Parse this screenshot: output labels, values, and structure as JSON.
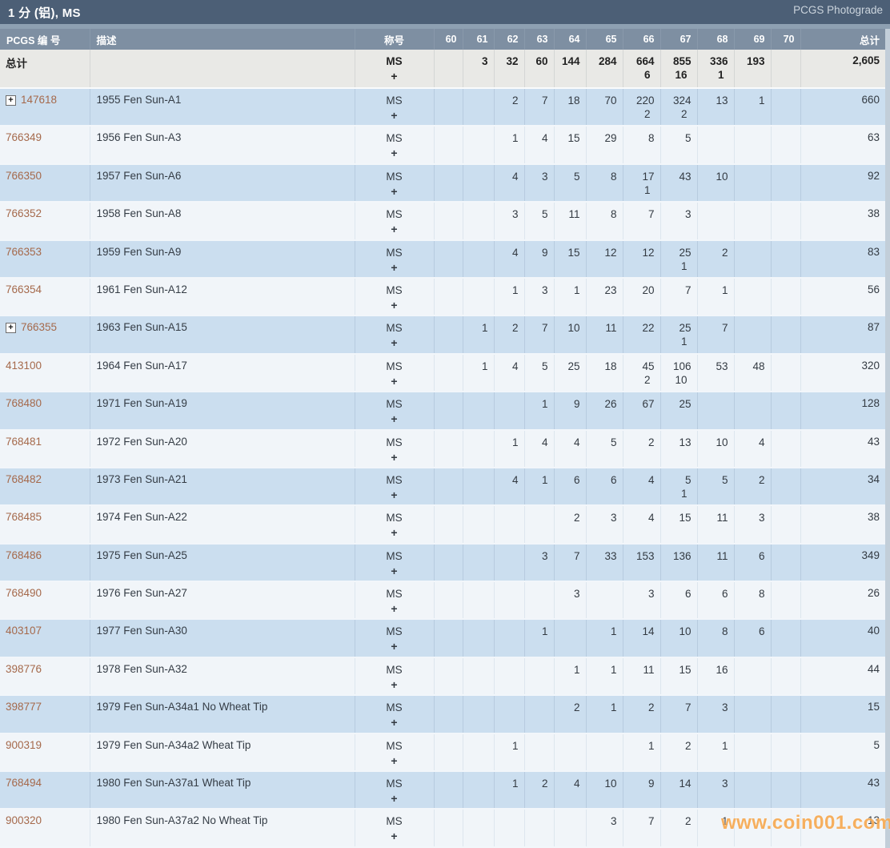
{
  "page": {
    "title": "1 分 (铝), MS",
    "photograde_label": "PCGS Photograde",
    "watermark": "www.coin001.com"
  },
  "colors": {
    "title_bar": "#4c5f76",
    "header_bar": "#7e8fa2",
    "totals_row_bg": "#e9e9e6",
    "row_blue": "#cbdeef",
    "row_light": "#f1f5f9",
    "link": "#a5694b",
    "watermark_orange": "#f6a448"
  },
  "table": {
    "headers": {
      "number": "PCGS 编 号",
      "description": "描述",
      "designation": "称号",
      "grades": [
        "60",
        "61",
        "62",
        "63",
        "64",
        "65",
        "66",
        "67",
        "68",
        "69",
        "70"
      ],
      "total": "总计"
    },
    "designation_line1": "MS",
    "designation_line2": "+",
    "totals_row": {
      "label": "总计",
      "ms": [
        "",
        "3",
        "32",
        "60",
        "144",
        "284",
        "664",
        "855",
        "336",
        "193",
        ""
      ],
      "plus": [
        "",
        "",
        "",
        "",
        "",
        "",
        "6",
        "16",
        "1",
        "",
        ""
      ],
      "total": "2,605"
    },
    "rows": [
      {
        "number": "147618",
        "expandable": true,
        "description": "1955 Fen Sun-A1",
        "ms": [
          "",
          "",
          "2",
          "7",
          "18",
          "70",
          "220",
          "324",
          "13",
          "1",
          ""
        ],
        "plus": [
          "",
          "",
          "",
          "",
          "",
          "",
          "2",
          "2",
          "",
          "",
          ""
        ],
        "total": "660"
      },
      {
        "number": "766349",
        "expandable": false,
        "description": "1956 Fen Sun-A3",
        "ms": [
          "",
          "",
          "1",
          "4",
          "15",
          "29",
          "8",
          "5",
          "",
          "",
          ""
        ],
        "plus": [],
        "total": "63"
      },
      {
        "number": "766350",
        "expandable": false,
        "description": "1957 Fen Sun-A6",
        "ms": [
          "",
          "",
          "4",
          "3",
          "5",
          "8",
          "17",
          "43",
          "10",
          "",
          ""
        ],
        "plus": [
          "",
          "",
          "",
          "",
          "",
          "",
          "1",
          "",
          "",
          "",
          ""
        ],
        "total": "92"
      },
      {
        "number": "766352",
        "expandable": false,
        "description": "1958 Fen Sun-A8",
        "ms": [
          "",
          "",
          "3",
          "5",
          "11",
          "8",
          "7",
          "3",
          "",
          "",
          ""
        ],
        "plus": [],
        "total": "38"
      },
      {
        "number": "766353",
        "expandable": false,
        "description": "1959 Fen Sun-A9",
        "ms": [
          "",
          "",
          "4",
          "9",
          "15",
          "12",
          "12",
          "25",
          "2",
          "",
          ""
        ],
        "plus": [
          "",
          "",
          "",
          "",
          "",
          "",
          "",
          "1",
          "",
          "",
          ""
        ],
        "total": "83"
      },
      {
        "number": "766354",
        "expandable": false,
        "description": "1961 Fen Sun-A12",
        "ms": [
          "",
          "",
          "1",
          "3",
          "1",
          "23",
          "20",
          "7",
          "1",
          "",
          ""
        ],
        "plus": [],
        "total": "56"
      },
      {
        "number": "766355",
        "expandable": true,
        "description": "1963 Fen Sun-A15",
        "ms": [
          "",
          "1",
          "2",
          "7",
          "10",
          "11",
          "22",
          "25",
          "7",
          "",
          ""
        ],
        "plus": [
          "",
          "",
          "",
          "",
          "",
          "",
          "",
          "1",
          "",
          "",
          ""
        ],
        "total": "87"
      },
      {
        "number": "413100",
        "expandable": false,
        "description": "1964 Fen Sun-A17",
        "ms": [
          "",
          "1",
          "4",
          "5",
          "25",
          "18",
          "45",
          "106",
          "53",
          "48",
          ""
        ],
        "plus": [
          "",
          "",
          "",
          "",
          "",
          "",
          "2",
          "10",
          "",
          "",
          ""
        ],
        "total": "320"
      },
      {
        "number": "768480",
        "expandable": false,
        "description": "1971 Fen Sun-A19",
        "ms": [
          "",
          "",
          "",
          "1",
          "9",
          "26",
          "67",
          "25",
          "",
          "",
          ""
        ],
        "plus": [],
        "total": "128"
      },
      {
        "number": "768481",
        "expandable": false,
        "description": "1972 Fen Sun-A20",
        "ms": [
          "",
          "",
          "1",
          "4",
          "4",
          "5",
          "2",
          "13",
          "10",
          "4",
          ""
        ],
        "plus": [],
        "total": "43"
      },
      {
        "number": "768482",
        "expandable": false,
        "description": "1973 Fen Sun-A21",
        "ms": [
          "",
          "",
          "4",
          "1",
          "6",
          "6",
          "4",
          "5",
          "5",
          "2",
          ""
        ],
        "plus": [
          "",
          "",
          "",
          "",
          "",
          "",
          "",
          "1",
          "",
          "",
          ""
        ],
        "total": "34"
      },
      {
        "number": "768485",
        "expandable": false,
        "description": "1974 Fen Sun-A22",
        "ms": [
          "",
          "",
          "",
          "",
          "2",
          "3",
          "4",
          "15",
          "11",
          "3",
          ""
        ],
        "plus": [],
        "total": "38"
      },
      {
        "number": "768486",
        "expandable": false,
        "description": "1975 Fen Sun-A25",
        "ms": [
          "",
          "",
          "",
          "3",
          "7",
          "33",
          "153",
          "136",
          "11",
          "6",
          ""
        ],
        "plus": [],
        "total": "349"
      },
      {
        "number": "768490",
        "expandable": false,
        "description": "1976 Fen Sun-A27",
        "ms": [
          "",
          "",
          "",
          "",
          "3",
          "",
          "3",
          "6",
          "6",
          "8",
          ""
        ],
        "plus": [],
        "total": "26"
      },
      {
        "number": "403107",
        "expandable": false,
        "description": "1977 Fen Sun-A30",
        "ms": [
          "",
          "",
          "",
          "1",
          "",
          "1",
          "14",
          "10",
          "8",
          "6",
          ""
        ],
        "plus": [],
        "total": "40"
      },
      {
        "number": "398776",
        "expandable": false,
        "description": "1978 Fen Sun-A32",
        "ms": [
          "",
          "",
          "",
          "",
          "1",
          "1",
          "11",
          "15",
          "16",
          "",
          ""
        ],
        "plus": [],
        "total": "44"
      },
      {
        "number": "398777",
        "expandable": false,
        "description": "1979 Fen Sun-A34a1 No Wheat Tip",
        "ms": [
          "",
          "",
          "",
          "",
          "2",
          "1",
          "2",
          "7",
          "3",
          "",
          ""
        ],
        "plus": [],
        "total": "15"
      },
      {
        "number": "900319",
        "expandable": false,
        "description": "1979 Fen Sun-A34a2 Wheat Tip",
        "ms": [
          "",
          "",
          "1",
          "",
          "",
          "",
          "1",
          "2",
          "1",
          "",
          ""
        ],
        "plus": [],
        "total": "5"
      },
      {
        "number": "768494",
        "expandable": false,
        "description": "1980 Fen Sun-A37a1 Wheat Tip",
        "ms": [
          "",
          "",
          "1",
          "2",
          "4",
          "10",
          "9",
          "14",
          "3",
          "",
          ""
        ],
        "plus": [],
        "total": "43"
      },
      {
        "number": "900320",
        "expandable": false,
        "description": "1980 Fen Sun-A37a2 No Wheat Tip",
        "ms": [
          "",
          "",
          "",
          "",
          "",
          "3",
          "7",
          "2",
          "1",
          "",
          ""
        ],
        "plus": [],
        "total": "13"
      }
    ]
  }
}
